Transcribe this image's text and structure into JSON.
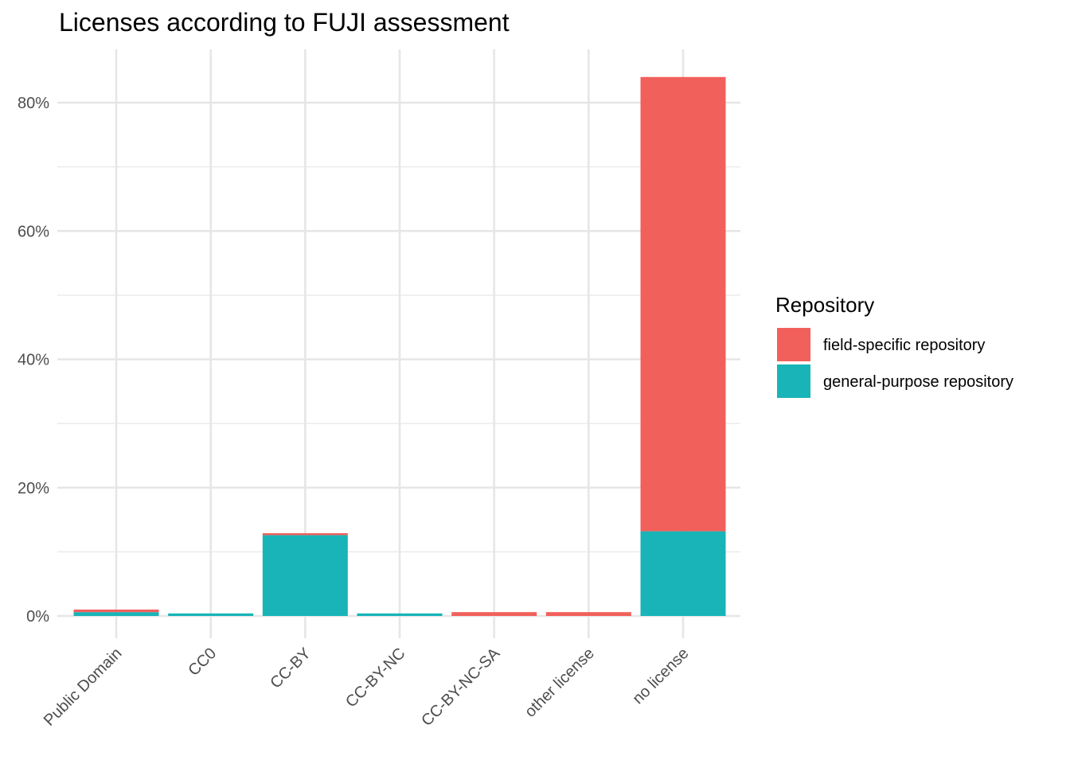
{
  "chart_data": {
    "type": "bar",
    "stacked": true,
    "title": "Licenses according to FUJI assessment",
    "xlabel": "",
    "ylabel": "",
    "categories": [
      "Public Domain",
      "CC0",
      "CC-BY",
      "CC-BY-NC",
      "CC-BY-NC-SA",
      "other license",
      "no license"
    ],
    "series": [
      {
        "name": "field-specific repository",
        "color": "#F2605C",
        "values": [
          0.4,
          0.0,
          0.3,
          0.0,
          0.6,
          0.6,
          70.8
        ]
      },
      {
        "name": "general-purpose repository",
        "color": "#18B4B8",
        "values": [
          0.6,
          0.4,
          12.6,
          0.4,
          0.0,
          0.0,
          13.2
        ]
      }
    ],
    "ylim": [
      0,
      88
    ],
    "yticks": [
      0,
      20,
      40,
      60,
      80
    ],
    "ytick_labels": [
      "0%",
      "20%",
      "40%",
      "60%",
      "80%"
    ],
    "grid": true,
    "legend": {
      "title": "Repository",
      "position": "right"
    }
  }
}
